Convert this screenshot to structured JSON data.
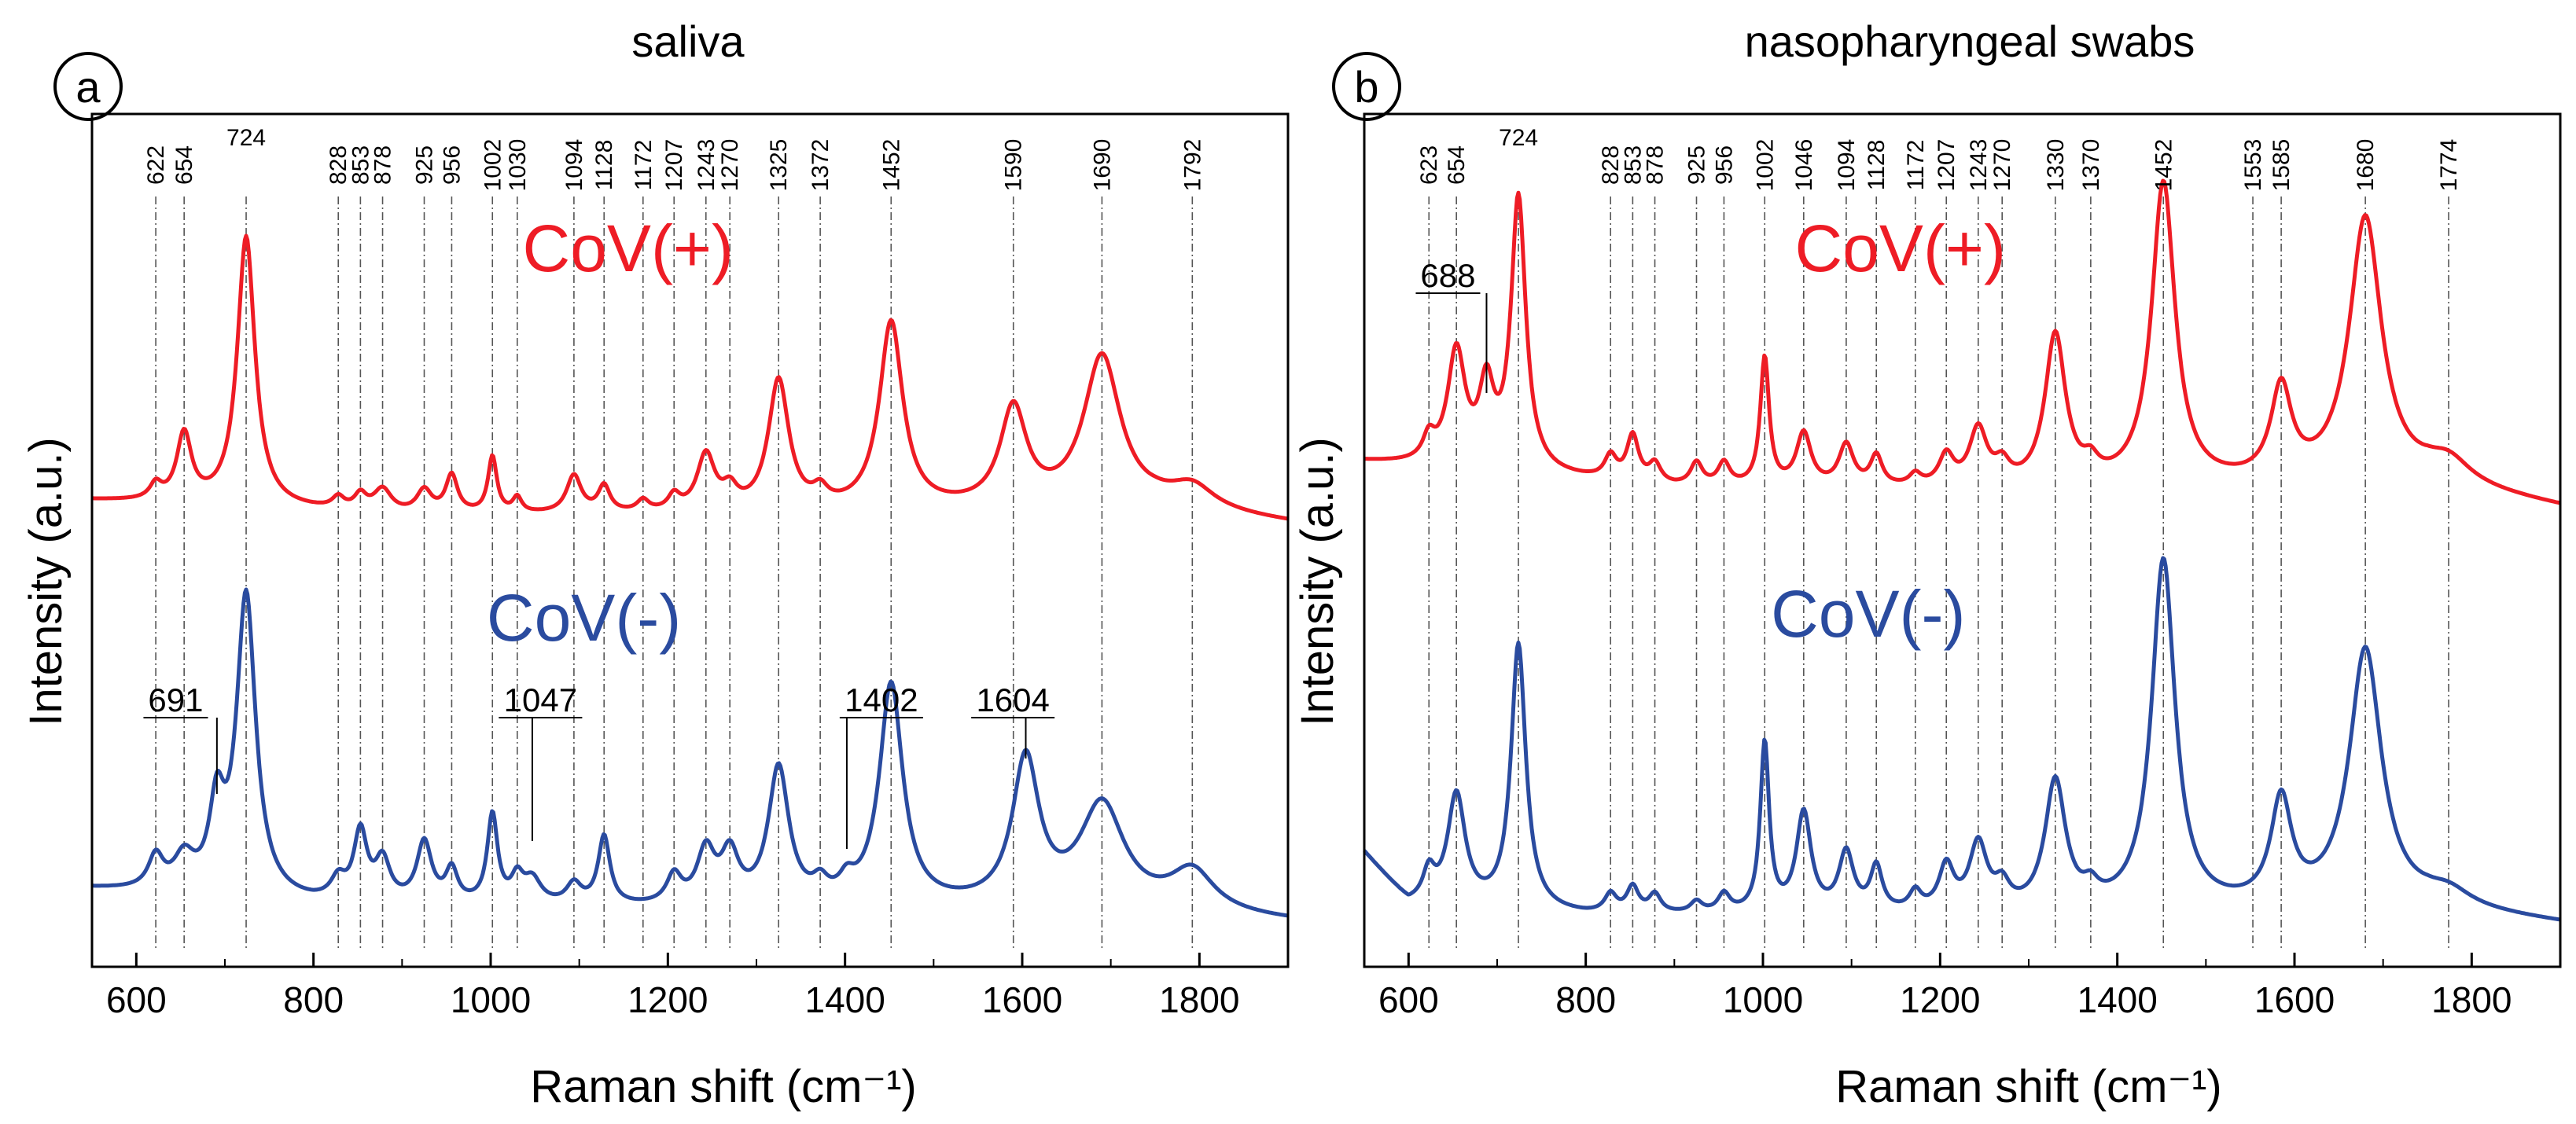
{
  "colors": {
    "positive": "#ee1c25",
    "negative": "#2a4b9f"
  },
  "chart_data": [
    {
      "type": "line",
      "panel": "a",
      "title": "saliva",
      "xlabel": "Raman shift (cm⁻¹)",
      "ylabel": "Intensity (a.u.)",
      "xlim": [
        550,
        1900
      ],
      "x_ticks": [
        600,
        800,
        1000,
        1200,
        1400,
        1600,
        1800
      ],
      "grid": false,
      "peak_lines": [
        622,
        654,
        724,
        828,
        853,
        878,
        925,
        956,
        1002,
        1030,
        1094,
        1128,
        1172,
        1207,
        1243,
        1270,
        1325,
        1372,
        1452,
        1590,
        1690,
        1792
      ],
      "annotations": [
        {
          "label": "691",
          "x": 691
        },
        {
          "label": "1047",
          "x": 1047
        },
        {
          "label": "1402",
          "x": 1402
        },
        {
          "label": "1604",
          "x": 1604
        }
      ],
      "series": [
        {
          "name": "CoV(+)",
          "color": "#ee1c25",
          "baseline": [
            [
              550,
              0.16
            ],
            [
              900,
              0.12
            ],
            [
              1300,
              0.12
            ],
            [
              1750,
              0.14
            ],
            [
              1900,
              0.1
            ]
          ],
          "peaks": [
            [
              622,
              0.04,
              8
            ],
            [
              654,
              0.18,
              10
            ],
            [
              724,
              0.72,
              12
            ],
            [
              828,
              0.03,
              8
            ],
            [
              853,
              0.04,
              8
            ],
            [
              878,
              0.06,
              12
            ],
            [
              925,
              0.06,
              10
            ],
            [
              956,
              0.1,
              8
            ],
            [
              1002,
              0.15,
              6
            ],
            [
              1030,
              0.04,
              6
            ],
            [
              1094,
              0.1,
              10
            ],
            [
              1128,
              0.07,
              8
            ],
            [
              1172,
              0.03,
              8
            ],
            [
              1207,
              0.04,
              8
            ],
            [
              1243,
              0.15,
              12
            ],
            [
              1270,
              0.05,
              10
            ],
            [
              1325,
              0.35,
              14
            ],
            [
              1372,
              0.04,
              10
            ],
            [
              1452,
              0.5,
              16
            ],
            [
              1590,
              0.26,
              18
            ],
            [
              1690,
              0.4,
              25
            ],
            [
              1792,
              0.06,
              30
            ]
          ]
        },
        {
          "name": "CoV(-)",
          "color": "#2a4b9f",
          "baseline": [
            [
              550,
              0.1
            ],
            [
              800,
              0.06
            ],
            [
              1200,
              0.05
            ],
            [
              1700,
              0.05
            ],
            [
              1900,
              0.02
            ]
          ],
          "peaks": [
            [
              622,
              0.08,
              10
            ],
            [
              654,
              0.08,
              14
            ],
            [
              691,
              0.2,
              10
            ],
            [
              724,
              0.75,
              13
            ],
            [
              828,
              0.05,
              10
            ],
            [
              853,
              0.17,
              9
            ],
            [
              878,
              0.1,
              10
            ],
            [
              925,
              0.15,
              10
            ],
            [
              956,
              0.08,
              8
            ],
            [
              1002,
              0.22,
              7
            ],
            [
              1030,
              0.06,
              8
            ],
            [
              1047,
              0.06,
              12
            ],
            [
              1094,
              0.05,
              10
            ],
            [
              1128,
              0.17,
              8
            ],
            [
              1207,
              0.07,
              10
            ],
            [
              1243,
              0.13,
              12
            ],
            [
              1270,
              0.12,
              12
            ],
            [
              1325,
              0.34,
              14
            ],
            [
              1372,
              0.04,
              10
            ],
            [
              1402,
              0.04,
              10
            ],
            [
              1452,
              0.55,
              16
            ],
            [
              1604,
              0.36,
              18
            ],
            [
              1690,
              0.25,
              30
            ],
            [
              1792,
              0.1,
              30
            ]
          ]
        }
      ]
    },
    {
      "type": "line",
      "panel": "b",
      "title": "nasopharyngeal swabs",
      "xlabel": "Raman shift (cm⁻¹)",
      "ylabel": "Intensity (a.u.)",
      "xlim": [
        550,
        1900
      ],
      "x_ticks": [
        600,
        800,
        1000,
        1200,
        1400,
        1600,
        1800
      ],
      "grid": false,
      "peak_lines": [
        623,
        654,
        724,
        828,
        853,
        878,
        925,
        956,
        1002,
        1046,
        1094,
        1128,
        1172,
        1207,
        1243,
        1270,
        1330,
        1370,
        1452,
        1553,
        1585,
        1680,
        1774
      ],
      "annotations": [
        {
          "label": "688",
          "x": 688
        }
      ],
      "series": [
        {
          "name": "CoV(+)",
          "color": "#ee1c25",
          "baseline": [
            [
              550,
              0.2
            ],
            [
              900,
              0.13
            ],
            [
              1300,
              0.12
            ],
            [
              1750,
              0.14
            ],
            [
              1900,
              0.08
            ]
          ],
          "peaks": [
            [
              623,
              0.06,
              8
            ],
            [
              654,
              0.3,
              12
            ],
            [
              688,
              0.2,
              10
            ],
            [
              724,
              0.72,
              10
            ],
            [
              828,
              0.06,
              8
            ],
            [
              853,
              0.12,
              8
            ],
            [
              878,
              0.05,
              8
            ],
            [
              925,
              0.06,
              8
            ],
            [
              956,
              0.06,
              8
            ],
            [
              1002,
              0.34,
              6
            ],
            [
              1046,
              0.14,
              10
            ],
            [
              1094,
              0.11,
              10
            ],
            [
              1128,
              0.08,
              8
            ],
            [
              1172,
              0.03,
              8
            ],
            [
              1207,
              0.08,
              10
            ],
            [
              1243,
              0.15,
              12
            ],
            [
              1270,
              0.05,
              10
            ],
            [
              1330,
              0.4,
              14
            ],
            [
              1370,
              0.04,
              10
            ],
            [
              1452,
              0.8,
              16
            ],
            [
              1585,
              0.24,
              14
            ],
            [
              1680,
              0.7,
              22
            ],
            [
              1774,
              0.06,
              30
            ]
          ]
        },
        {
          "name": "CoV(-)",
          "color": "#2a4b9f",
          "baseline": [
            [
              550,
              0.22
            ],
            [
              600,
              0.08
            ],
            [
              800,
              0.05
            ],
            [
              1300,
              0.05
            ],
            [
              1750,
              0.07
            ],
            [
              1900,
              0.03
            ]
          ],
          "peaks": [
            [
              623,
              0.08,
              8
            ],
            [
              654,
              0.3,
              12
            ],
            [
              724,
              0.72,
              10
            ],
            [
              828,
              0.05,
              8
            ],
            [
              853,
              0.07,
              8
            ],
            [
              878,
              0.05,
              8
            ],
            [
              925,
              0.03,
              8
            ],
            [
              956,
              0.05,
              8
            ],
            [
              1002,
              0.46,
              6
            ],
            [
              1046,
              0.27,
              10
            ],
            [
              1094,
              0.16,
              10
            ],
            [
              1128,
              0.12,
              8
            ],
            [
              1172,
              0.05,
              8
            ],
            [
              1207,
              0.12,
              10
            ],
            [
              1243,
              0.18,
              12
            ],
            [
              1270,
              0.06,
              10
            ],
            [
              1330,
              0.35,
              14
            ],
            [
              1370,
              0.04,
              10
            ],
            [
              1452,
              0.95,
              16
            ],
            [
              1585,
              0.28,
              14
            ],
            [
              1680,
              0.7,
              22
            ],
            [
              1774,
              0.04,
              30
            ]
          ]
        }
      ]
    }
  ]
}
